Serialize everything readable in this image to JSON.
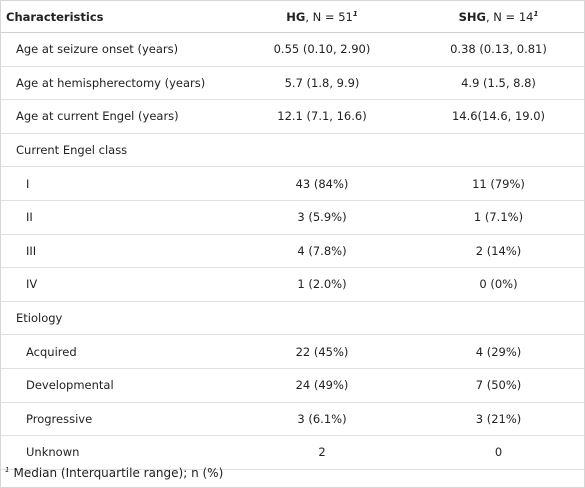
{
  "table": {
    "headers": {
      "characteristics": "Characteristics",
      "hg_label": "HG",
      "hg_n": ", N = 51",
      "shg_label": "SHG",
      "shg_n": ", N = 14",
      "footnote_marker": "1"
    },
    "rows": [
      {
        "label": "Age at seizure onset (years)",
        "hg": "0.55 (0.10, 2.90)",
        "shg": "0.38 (0.13, 0.81)"
      },
      {
        "label": "Age at hemispherectomy (years)",
        "hg": "5.7 (1.8, 9.9)",
        "shg": "4.9 (1.5, 8.8)"
      },
      {
        "label": "Age at current Engel (years)",
        "hg": "12.1 (7.1, 16.6)",
        "shg": "14.6(14.6, 19.0)"
      },
      {
        "label": "Current Engel class",
        "hg": "",
        "shg": ""
      },
      {
        "label": "I",
        "hg": "43 (84%)",
        "shg": "11 (79%)"
      },
      {
        "label": "II",
        "hg": "3 (5.9%)",
        "shg": "1 (7.1%)"
      },
      {
        "label": "III",
        "hg": "4 (7.8%)",
        "shg": "2 (14%)"
      },
      {
        "label": "IV",
        "hg": "1 (2.0%)",
        "shg": "0 (0%)"
      },
      {
        "label": "Etiology",
        "hg": "",
        "shg": ""
      },
      {
        "label": "Acquired",
        "hg": "22 (45%)",
        "shg": "4 (29%)"
      },
      {
        "label": "Developmental",
        "hg": "24 (49%)",
        "shg": "7 (50%)"
      },
      {
        "label": "Progressive",
        "hg": "3 (6.1%)",
        "shg": "3 (21%)"
      },
      {
        "label": "Unknown",
        "hg": "2",
        "shg": "0"
      }
    ]
  },
  "footnote": {
    "marker": "1",
    "text": "Median (Interquartile range); n (%)"
  }
}
